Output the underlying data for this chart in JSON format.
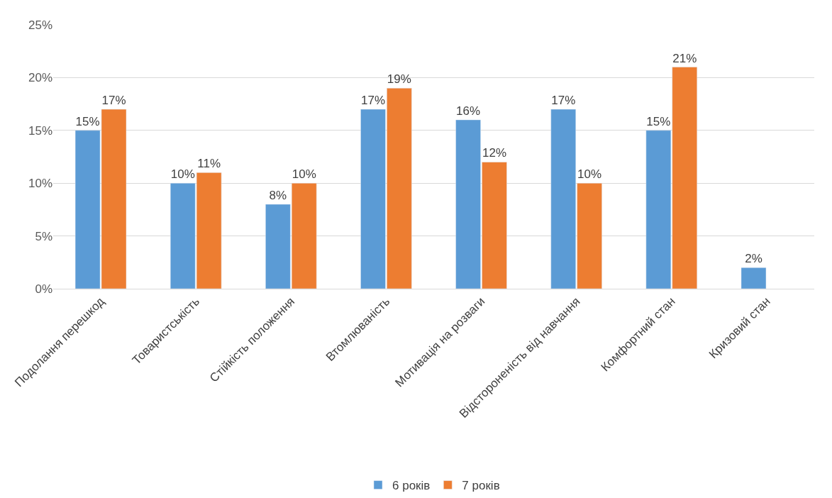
{
  "chart_data": {
    "type": "bar",
    "categories": [
      "Подолання перешкод",
      "Товаристськість",
      "Стійкість положення",
      "Втомлюваність",
      "Мотивація на розваги",
      "Відстороненість від навчання",
      "Комфортний стан",
      "Кризовий стан"
    ],
    "series": [
      {
        "name": "6 років",
        "color": "#5b9bd5",
        "values": [
          15,
          10,
          8,
          17,
          16,
          17,
          15,
          2
        ],
        "value_labels": [
          "15%",
          "10%",
          "8%",
          "17%",
          "16%",
          "17%",
          "15%",
          "2%"
        ]
      },
      {
        "name": "7 років",
        "color": "#ed7d31",
        "values": [
          17,
          11,
          10,
          19,
          12,
          10,
          21,
          null
        ],
        "value_labels": [
          "17%",
          "11%",
          "10%",
          "19%",
          "12%",
          "10%",
          "21%",
          null
        ]
      }
    ],
    "ylim": [
      0,
      25
    ],
    "yticks": [
      {
        "value": 0,
        "label": "0%"
      },
      {
        "value": 5,
        "label": "5%"
      },
      {
        "value": 10,
        "label": "10%"
      },
      {
        "value": 15,
        "label": "15%"
      },
      {
        "value": 20,
        "label": "20%"
      },
      {
        "value": 25,
        "label": "25%"
      }
    ],
    "grid": "y",
    "legend": "bottom"
  }
}
